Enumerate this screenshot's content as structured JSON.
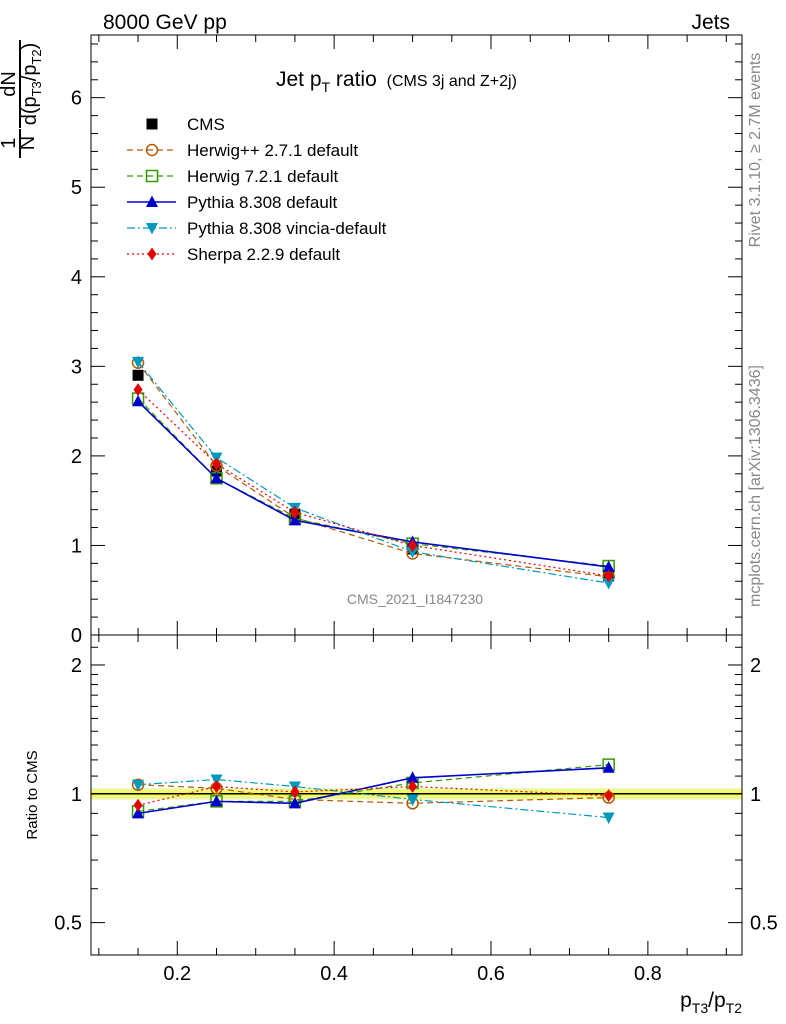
{
  "header": {
    "left": "8000 GeV pp",
    "right": "Jets",
    "rivet": "Rivet 3.1.10, ≥ 2.7M events",
    "mcplots": "mcplots.cern.ch [arXiv:1306.3436]",
    "watermark": "CMS_2021_I1847230"
  },
  "chart_data": [
    {
      "type": "line",
      "title_main": "Jet p",
      "title_sub": "T",
      "title_word": " ratio",
      "title_paren": "(CMS 3j and Z+2j)",
      "ylabel_num": "1",
      "ylabel_den": "N",
      "ylabel_dn": "dN",
      "ylabel_d": "d(p",
      "ylabel_s1": "T3",
      "ylabel_slash": "/p",
      "ylabel_s2": "T2",
      "ylabel_close": ")",
      "xlim": [
        0.09,
        0.92
      ],
      "ylim": [
        0,
        6.7
      ],
      "yticks": [
        0,
        1,
        2,
        3,
        4,
        5,
        6
      ],
      "x": [
        0.15,
        0.25,
        0.35,
        0.5,
        0.75
      ],
      "series": [
        {
          "name": "CMS",
          "color": "#000000",
          "marker": "square-filled",
          "line": "none",
          "values": [
            2.9,
            1.83,
            1.35,
            0.96,
            0.66
          ]
        },
        {
          "name": "Herwig++ 2.7.1 default",
          "color": "#b35900",
          "marker": "circle-open",
          "line": "dashed",
          "values": [
            3.04,
            1.89,
            1.31,
            0.91,
            0.65
          ]
        },
        {
          "name": "Herwig 7.2.1 default",
          "color": "#339900",
          "marker": "square-open",
          "line": "dashed",
          "values": [
            2.64,
            1.75,
            1.3,
            1.02,
            0.77
          ]
        },
        {
          "name": "Pythia 8.308 default",
          "color": "#0000cc",
          "marker": "triangle-up",
          "line": "solid",
          "values": [
            2.61,
            1.75,
            1.28,
            1.04,
            0.76
          ]
        },
        {
          "name": "Pythia 8.308 vincia-default",
          "color": "#0099bb",
          "marker": "triangle-down",
          "line": "dashdot",
          "values": [
            3.05,
            1.98,
            1.42,
            0.93,
            0.58
          ]
        },
        {
          "name": "Sherpa 2.2.9 default",
          "color": "#e60000",
          "marker": "diamond",
          "line": "dotted",
          "values": [
            2.74,
            1.91,
            1.37,
            1.0,
            0.66
          ]
        }
      ]
    },
    {
      "type": "line",
      "ylabel": "Ratio to CMS",
      "xlabel_p1": "p",
      "xlabel_s1": "T3",
      "xlabel_slash": "/p",
      "xlabel_s2": "T2",
      "yscale": "log",
      "ylim": [
        0.42,
        2.35
      ],
      "yticks": [
        0.5,
        1,
        2
      ],
      "xticks": [
        0.2,
        0.4,
        0.6,
        0.8
      ],
      "x": [
        0.15,
        0.25,
        0.35,
        0.5,
        0.75
      ],
      "series": [
        {
          "name": "Herwig++ 2.7.1 default",
          "values": [
            1.05,
            1.03,
            0.97,
            0.95,
            0.98
          ]
        },
        {
          "name": "Herwig 7.2.1 default",
          "values": [
            0.91,
            0.96,
            0.96,
            1.06,
            1.17
          ]
        },
        {
          "name": "Pythia 8.308 default",
          "values": [
            0.9,
            0.96,
            0.95,
            1.09,
            1.15
          ]
        },
        {
          "name": "Pythia 8.308 vincia-default",
          "values": [
            1.05,
            1.08,
            1.04,
            0.97,
            0.88
          ]
        },
        {
          "name": "Sherpa 2.2.9 default",
          "values": [
            0.94,
            1.04,
            1.01,
            1.04,
            0.99
          ]
        }
      ]
    }
  ]
}
